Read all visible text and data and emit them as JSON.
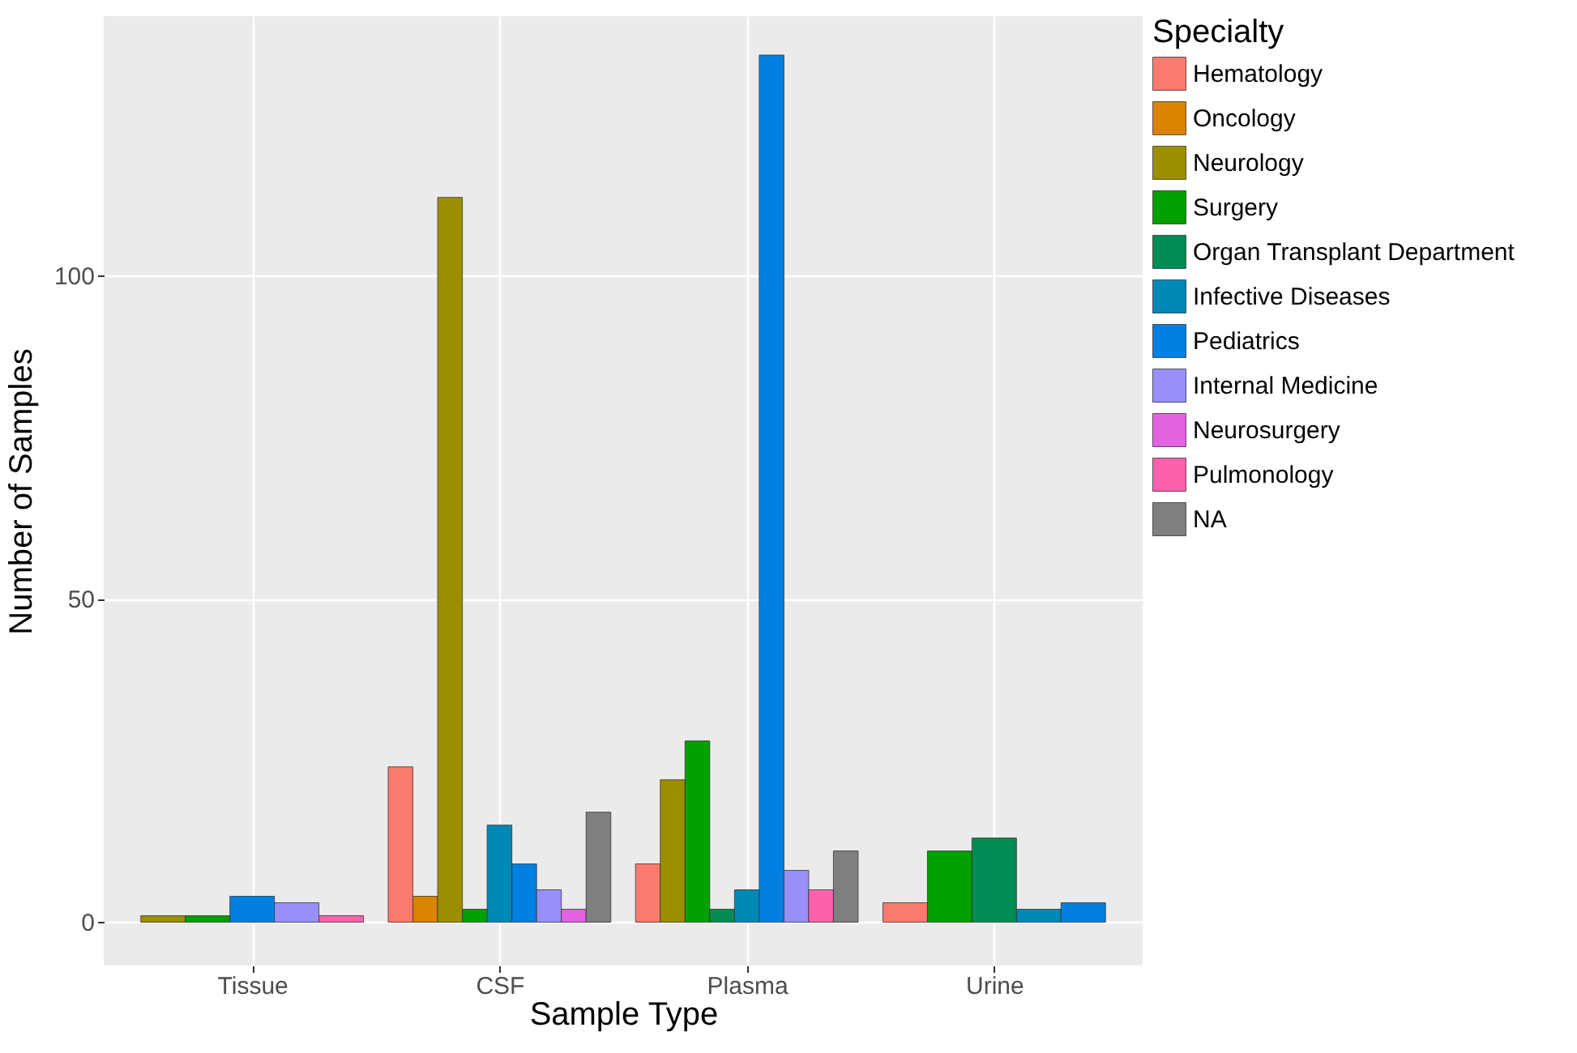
{
  "chart_data": {
    "type": "bar",
    "xlabel": "Sample Type",
    "ylabel": "Number of Samples",
    "legend_title": "Specialty",
    "categories": [
      "Tissue",
      "CSF",
      "Plasma",
      "Urine"
    ],
    "series": [
      {
        "name": "Hematology",
        "color": "#fd7b6e",
        "values": [
          null,
          24,
          9,
          3
        ]
      },
      {
        "name": "Oncology",
        "color": "#da8300",
        "values": [
          null,
          4,
          null,
          null
        ]
      },
      {
        "name": "Neurology",
        "color": "#9c8e00",
        "values": [
          1,
          112,
          22,
          null
        ]
      },
      {
        "name": "Surgery",
        "color": "#00a000",
        "values": [
          1,
          2,
          28,
          11
        ]
      },
      {
        "name": "Organ Transplant Department",
        "color": "#008c52",
        "values": [
          null,
          null,
          2,
          13
        ]
      },
      {
        "name": "Infective Diseases",
        "color": "#0089b6",
        "values": [
          null,
          15,
          5,
          2
        ]
      },
      {
        "name": "Pediatrics",
        "color": "#0080e0",
        "values": [
          4,
          9,
          134,
          3
        ]
      },
      {
        "name": "Internal Medicine",
        "color": "#9690f8",
        "values": [
          3,
          5,
          8,
          null
        ]
      },
      {
        "name": "Neurosurgery",
        "color": "#e362e0",
        "values": [
          null,
          2,
          null,
          null
        ]
      },
      {
        "name": "Pulmonology",
        "color": "#fb61ad",
        "values": [
          1,
          null,
          5,
          null
        ]
      },
      {
        "name": "NA",
        "color": "#7f7f7f",
        "values": [
          null,
          17,
          11,
          null
        ]
      }
    ],
    "ylim": [
      -6.7,
      140
    ],
    "yticks": [
      0,
      50,
      100
    ],
    "grid": true,
    "legend": "right"
  }
}
